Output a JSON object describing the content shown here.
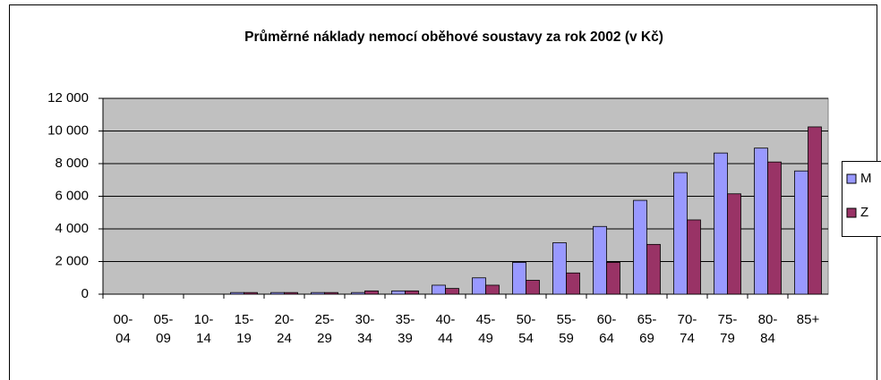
{
  "chart_data": {
    "type": "bar",
    "title": "Průměrné náklady nemocí oběhové soustavy za rok 2002 (v Kč)",
    "categories": [
      "00-04",
      "05-09",
      "10-14",
      "15-19",
      "20-24",
      "25-29",
      "30-34",
      "35-39",
      "40-44",
      "45-49",
      "50-54",
      "55-59",
      "60-64",
      "65-69",
      "70-74",
      "75-79",
      "80-84",
      "85+"
    ],
    "series": [
      {
        "name": "M",
        "color": "#9999ff",
        "values": [
          0,
          0,
          0,
          100,
          100,
          100,
          100,
          200,
          550,
          1000,
          1950,
          3150,
          4150,
          5750,
          7450,
          8650,
          8950,
          7550
        ]
      },
      {
        "name": "Z",
        "color": "#993366",
        "values": [
          0,
          0,
          0,
          100,
          100,
          100,
          200,
          200,
          350,
          550,
          850,
          1300,
          1950,
          3050,
          4550,
          6150,
          8100,
          10250
        ]
      }
    ],
    "ylim": [
      0,
      12000
    ],
    "yticks": [
      0,
      {
        "value": 2000,
        "label": "2 000"
      },
      {
        "value": 4000,
        "label": "4 000"
      },
      {
        "value": 6000,
        "label": "6 000"
      },
      {
        "value": 8000,
        "label": "8 000"
      },
      {
        "value": 10000,
        "label": "10 000"
      },
      {
        "value": 12000,
        "label": "12 000"
      }
    ],
    "grid": true,
    "plot_background": "#c0c0c0",
    "legend": "right"
  }
}
